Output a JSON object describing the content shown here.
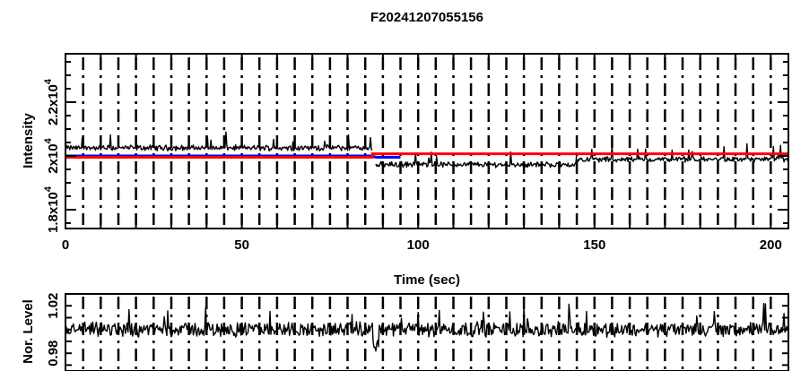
{
  "chart_data": [
    {
      "type": "line",
      "title": "F20241207055156",
      "xlabel": "Time (sec)",
      "ylabel": "Intensity",
      "xlim": [
        0,
        205
      ],
      "ylim": [
        17300,
        23800
      ],
      "x_ticks": [
        {
          "value": 0,
          "label": "0"
        },
        {
          "value": 50,
          "label": "50"
        },
        {
          "value": 100,
          "label": "100"
        },
        {
          "value": 150,
          "label": "150"
        },
        {
          "value": 200,
          "label": "200"
        }
      ],
      "y_ticks": [
        {
          "value": 18000,
          "label": "1.8x10"
        },
        {
          "value": 20000,
          "label": "2x10"
        },
        {
          "value": 22000,
          "label": "2.2x10"
        }
      ],
      "y_tick_exponent": "4",
      "grid": "vertical dash-dot lines",
      "series": [
        {
          "color": "#000000",
          "segments": [
            {
              "x_start": 0,
              "x_end": 87,
              "level": 20300
            },
            {
              "x_start": 88,
              "x_end": 145,
              "level": 19680
            },
            {
              "x_start": 145,
              "x_end": 205,
              "level": 19870
            }
          ]
        },
        {
          "color": "#ff0000",
          "x": [
            0,
            87,
            87,
            205
          ],
          "y": [
            19950,
            19950,
            20080,
            20080
          ]
        },
        {
          "color": "#0000ff",
          "x": [
            0,
            87,
            88,
            95
          ],
          "y": [
            20000,
            20000,
            19950,
            19950
          ]
        }
      ]
    },
    {
      "type": "line",
      "title": "",
      "xlabel": "",
      "ylabel": "Nor. Level",
      "xlim": [
        0,
        205
      ],
      "ylim": [
        0.965,
        1.03
      ],
      "y_ticks": [
        {
          "value": 0.98,
          "label": "0.98"
        },
        {
          "value": 1.02,
          "label": "1.02"
        }
      ],
      "grid": "vertical dash-dot lines",
      "series": [
        {
          "color": "#000000",
          "level": 1.0
        }
      ]
    }
  ]
}
